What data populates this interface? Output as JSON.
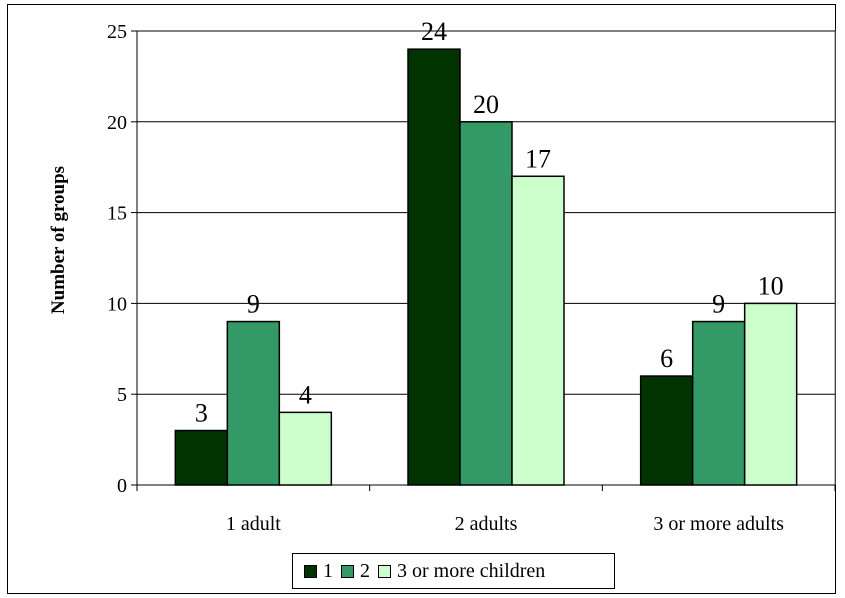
{
  "chart_data": {
    "type": "bar",
    "categories": [
      "1 adult",
      "2 adults",
      "3 or more adults"
    ],
    "series": [
      {
        "name": "1",
        "values": [
          3,
          24,
          6
        ],
        "color": "#003300"
      },
      {
        "name": "2",
        "values": [
          9,
          20,
          9
        ],
        "color": "#339966"
      },
      {
        "name": "3 or more children",
        "values": [
          4,
          17,
          10
        ],
        "color": "#ccffcc"
      }
    ],
    "title": "",
    "xlabel": "",
    "ylabel": "Number of groups",
    "ylim": [
      0,
      25
    ],
    "yticks": [
      0,
      5,
      10,
      15,
      20,
      25
    ],
    "grid": true,
    "legend_position": "bottom",
    "data_labels": true
  }
}
